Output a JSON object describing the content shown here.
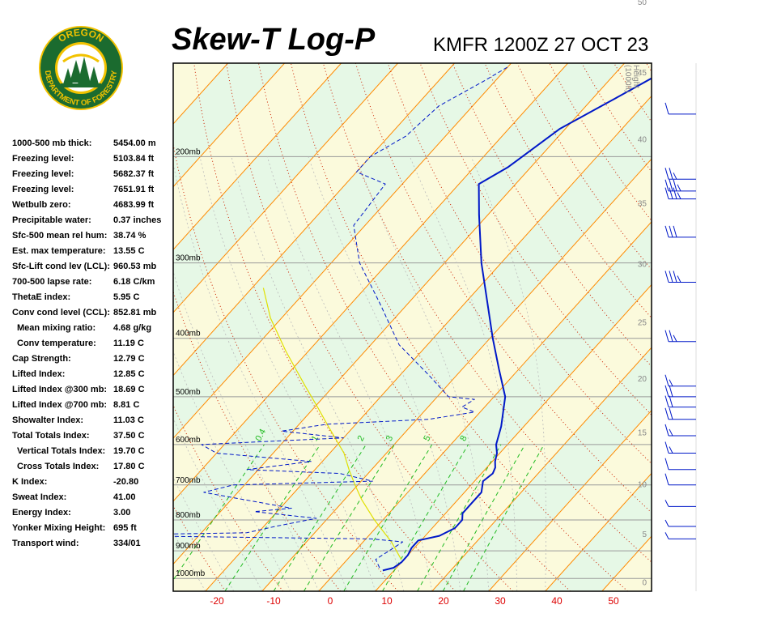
{
  "header": {
    "title": "Skew-T Log-P",
    "station": "KMFR 1200Z 27 OCT 23"
  },
  "logo": {
    "top_text": "OREGON",
    "bottom_text": "DEPARTMENT OF FORESTRY"
  },
  "stats": [
    {
      "label": "1000-500 mb thick:",
      "value": "5454.00 m",
      "indent": false
    },
    {
      "label": "Freezing level:",
      "value": "5103.84 ft",
      "indent": false
    },
    {
      "label": "Freezing level:",
      "value": "5682.37 ft",
      "indent": false
    },
    {
      "label": "Freezing level:",
      "value": "7651.91 ft",
      "indent": false
    },
    {
      "label": "Wetbulb zero:",
      "value": "4683.99 ft",
      "indent": false
    },
    {
      "label": "Precipitable water:",
      "value": "0.37 inches",
      "indent": false
    },
    {
      "label": "Sfc-500 mean rel hum:",
      "value": "38.74 %",
      "indent": false
    },
    {
      "label": "Est. max temperature:",
      "value": "13.55 C",
      "indent": false
    },
    {
      "label": "Sfc-Lift cond lev (LCL):",
      "value": "960.53 mb",
      "indent": false
    },
    {
      "label": "700-500 lapse rate:",
      "value": "6.18 C/km",
      "indent": false
    },
    {
      "label": "ThetaE index:",
      "value": "5.95 C",
      "indent": false
    },
    {
      "label": "Conv cond level (CCL):",
      "value": "852.81 mb",
      "indent": false
    },
    {
      "label": "Mean mixing ratio:",
      "value": "4.68 g/kg",
      "indent": true
    },
    {
      "label": "Conv temperature:",
      "value": "11.19 C",
      "indent": true
    },
    {
      "label": "Cap Strength:",
      "value": "12.79 C",
      "indent": false
    },
    {
      "label": "Lifted Index:",
      "value": "12.85 C",
      "indent": false
    },
    {
      "label": "Lifted Index @300 mb:",
      "value": "18.69 C",
      "indent": false
    },
    {
      "label": "Lifted Index @700 mb:",
      "value": "8.81 C",
      "indent": false
    },
    {
      "label": "Showalter Index:",
      "value": "11.03 C",
      "indent": false
    },
    {
      "label": "Total Totals Index:",
      "value": "37.50 C",
      "indent": false
    },
    {
      "label": "Vertical Totals Index:",
      "value": "19.70 C",
      "indent": true
    },
    {
      "label": "Cross Totals Index:",
      "value": "17.80 C",
      "indent": true
    },
    {
      "label": "K Index:",
      "value": "-20.80",
      "indent": false
    },
    {
      "label": "Sweat Index:",
      "value": "41.00",
      "indent": false
    },
    {
      "label": "Energy Index:",
      "value": "3.00",
      "indent": false
    },
    {
      "label": "Yonker Mixing Height:",
      "value": "695 ft",
      "indent": false
    },
    {
      "label": "Transport wind:",
      "value": "334/01",
      "indent": false
    }
  ],
  "chart_data": {
    "type": "line",
    "title": "Skew-T Log-P",
    "xlabel": "",
    "ylabel": "",
    "x_ticks": [
      "-20",
      "-10",
      "0",
      "10",
      "20",
      "30",
      "40",
      "50"
    ],
    "pressure_labels": [
      "200mb",
      "300mb",
      "400mb",
      "500mb",
      "600mb",
      "700mb",
      "800mb",
      "900mb",
      "1000mb"
    ],
    "height_axis_title": [
      "Height",
      "(1000ft)"
    ],
    "height_ticks": [
      "50",
      "45",
      "40",
      "35",
      "30",
      "25",
      "20",
      "15",
      "10",
      "5",
      "0"
    ],
    "mixing_ratio_labels": [
      "0.4",
      "1",
      "2",
      "3",
      "5",
      "8"
    ],
    "series": [
      {
        "kind": "temperature",
        "points": [
          {
            "p": 970,
            "t": 8
          },
          {
            "p": 960,
            "t": 9.5
          },
          {
            "p": 940,
            "t": 10
          },
          {
            "p": 915,
            "t": 10
          },
          {
            "p": 890,
            "t": 9.5
          },
          {
            "p": 865,
            "t": 9.5
          },
          {
            "p": 850,
            "t": 12.5
          },
          {
            "p": 825,
            "t": 14
          },
          {
            "p": 800,
            "t": 14
          },
          {
            "p": 780,
            "t": 13
          },
          {
            "p": 750,
            "t": 13
          },
          {
            "p": 720,
            "t": 13
          },
          {
            "p": 690,
            "t": 11.5
          },
          {
            "p": 670,
            "t": 12
          },
          {
            "p": 655,
            "t": 11.5
          },
          {
            "p": 640,
            "t": 10.5
          },
          {
            "p": 620,
            "t": 9.5
          },
          {
            "p": 600,
            "t": 8
          },
          {
            "p": 560,
            "t": 6
          },
          {
            "p": 500,
            "t": 2
          },
          {
            "p": 450,
            "t": -3.5
          },
          {
            "p": 400,
            "t": -9.5
          },
          {
            "p": 350,
            "t": -16
          },
          {
            "p": 300,
            "t": -23.5
          },
          {
            "p": 250,
            "t": -31.5
          },
          {
            "p": 222,
            "t": -36.5
          },
          {
            "p": 208,
            "t": -34
          },
          {
            "p": 180,
            "t": -31
          },
          {
            "p": 160,
            "t": -26
          },
          {
            "p": 142,
            "t": -21
          }
        ]
      },
      {
        "kind": "dewpoint",
        "points": [
          {
            "p": 960,
            "t": 7
          },
          {
            "p": 930,
            "t": 5
          },
          {
            "p": 900,
            "t": 6
          },
          {
            "p": 870,
            "t": 7
          },
          {
            "p": 860,
            "t": 1
          },
          {
            "p": 848,
            "t": -50
          },
          {
            "p": 840,
            "t": -22
          },
          {
            "p": 820,
            "t": -18
          },
          {
            "p": 795,
            "t": -12
          },
          {
            "p": 775,
            "t": -24
          },
          {
            "p": 765,
            "t": -18
          },
          {
            "p": 720,
            "t": -36
          },
          {
            "p": 700,
            "t": -32
          },
          {
            "p": 690,
            "t": -8
          },
          {
            "p": 670,
            "t": -15
          },
          {
            "p": 660,
            "t": -32
          },
          {
            "p": 640,
            "t": -22
          },
          {
            "p": 620,
            "t": -40
          },
          {
            "p": 600,
            "t": -44
          },
          {
            "p": 585,
            "t": -20
          },
          {
            "p": 570,
            "t": -32
          },
          {
            "p": 555,
            "t": -25
          },
          {
            "p": 545,
            "t": -8
          },
          {
            "p": 530,
            "t": -1
          },
          {
            "p": 520,
            "t": -4
          },
          {
            "p": 505,
            "t": -3
          },
          {
            "p": 500,
            "t": -8
          },
          {
            "p": 460,
            "t": -15
          },
          {
            "p": 410,
            "t": -25
          },
          {
            "p": 350,
            "t": -35
          },
          {
            "p": 300,
            "t": -45
          },
          {
            "p": 260,
            "t": -52
          },
          {
            "p": 222,
            "t": -53
          },
          {
            "p": 212,
            "t": -60
          },
          {
            "p": 200,
            "t": -60
          },
          {
            "p": 185,
            "t": -57
          },
          {
            "p": 165,
            "t": -56
          },
          {
            "p": 150,
            "t": -52
          },
          {
            "p": 142,
            "t": -50
          }
        ]
      },
      {
        "kind": "parcel",
        "points": [
          {
            "p": 930,
            "t": 9.5
          },
          {
            "p": 870,
            "t": 5
          },
          {
            "p": 800,
            "t": -1.5
          },
          {
            "p": 740,
            "t": -7
          },
          {
            "p": 700,
            "t": -10.5
          },
          {
            "p": 660,
            "t": -14
          },
          {
            "p": 620,
            "t": -17.5
          },
          {
            "p": 560,
            "t": -24.5
          },
          {
            "p": 520,
            "t": -29.5
          },
          {
            "p": 480,
            "t": -35
          },
          {
            "p": 420,
            "t": -44
          },
          {
            "p": 370,
            "t": -52
          },
          {
            "p": 330,
            "t": -58
          }
        ]
      }
    ],
    "wind_barbs": [
      {
        "p": 170,
        "feathers": [
          10
        ]
      },
      {
        "p": 218,
        "feathers": [
          10,
          10,
          5
        ]
      },
      {
        "p": 228,
        "feathers": [
          10,
          10,
          10,
          5
        ]
      },
      {
        "p": 235,
        "feathers": [
          10,
          10,
          10,
          5
        ]
      },
      {
        "p": 272,
        "feathers": [
          10,
          10,
          10
        ]
      },
      {
        "p": 323,
        "feathers": [
          10,
          10,
          10,
          5
        ]
      },
      {
        "p": 405,
        "feathers": [
          10,
          10,
          5
        ]
      },
      {
        "p": 480,
        "feathers": [
          10,
          5
        ]
      },
      {
        "p": 500,
        "feathers": [
          10,
          10
        ]
      },
      {
        "p": 520,
        "feathers": [
          10,
          10
        ]
      },
      {
        "p": 545,
        "feathers": [
          10,
          10
        ]
      },
      {
        "p": 580,
        "feathers": [
          10,
          5
        ]
      },
      {
        "p": 620,
        "feathers": [
          10,
          5
        ]
      },
      {
        "p": 660,
        "feathers": [
          10
        ]
      },
      {
        "p": 700,
        "feathers": [
          10
        ]
      },
      {
        "p": 760,
        "feathers": [
          5
        ]
      },
      {
        "p": 820,
        "feathers": [
          5
        ]
      },
      {
        "p": 860,
        "feathers": [
          5
        ]
      }
    ]
  },
  "colors": {
    "temperature": "#0018c8",
    "dewpoint": "#0018c8",
    "parcel": "#e0e000",
    "isotherm": "#ff8a00",
    "isobar": "#9a9a9a",
    "dry_adiabat": "#cc2200",
    "moist_adiabat": "#bbbbbb",
    "mixing_ratio": "#22bb22",
    "band_green": "#e6f8e6",
    "band_yellow": "#fbfadc",
    "tick_red": "#dd0000",
    "height_gray": "#888888"
  }
}
